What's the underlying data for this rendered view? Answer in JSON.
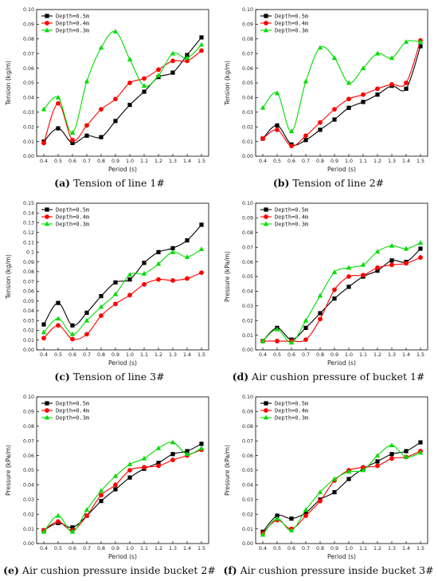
{
  "chart_data": [
    {
      "type": "line",
      "caption_letter": "(a)",
      "caption_text": "Tension of line 1#",
      "xlabel": "Period (s)",
      "ylabel": "Tension (kg/m)",
      "xlim": [
        0.35,
        1.55
      ],
      "ylim": [
        0,
        0.1
      ],
      "xticks": [
        "0.4",
        "0.5",
        "0.6",
        "0.7",
        "0.8",
        "0.9",
        "1.0",
        "1.1",
        "1.2",
        "1.3",
        "1.4",
        "1.5"
      ],
      "yticks": [
        "0.00",
        "0.01",
        "0.02",
        "0.03",
        "0.04",
        "0.05",
        "0.06",
        "0.07",
        "0.08",
        "0.09",
        "0.10"
      ],
      "legend_position": "top-left",
      "x": [
        0.4,
        0.5,
        0.6,
        0.7,
        0.8,
        0.9,
        1.0,
        1.1,
        1.2,
        1.3,
        1.4,
        1.5
      ],
      "series": [
        {
          "name": "Depth=0.5m",
          "color": "#000000",
          "marker": "square",
          "values": [
            0.01,
            0.019,
            0.009,
            0.014,
            0.013,
            0.024,
            0.035,
            0.044,
            0.054,
            0.057,
            0.069,
            0.081
          ]
        },
        {
          "name": "Depth=0.4m",
          "color": "#ff0000",
          "marker": "circle",
          "values": [
            0.009,
            0.036,
            0.011,
            0.021,
            0.032,
            0.039,
            0.05,
            0.053,
            0.059,
            0.065,
            0.065,
            0.072
          ]
        },
        {
          "name": "Depth=0.3m",
          "color": "#00dd00",
          "marker": "triangle",
          "values": [
            0.032,
            0.04,
            0.016,
            0.051,
            0.074,
            0.085,
            0.066,
            0.048,
            0.055,
            0.07,
            0.067,
            0.076
          ]
        }
      ]
    },
    {
      "type": "line",
      "caption_letter": "(b)",
      "caption_text": "Tension of line 2#",
      "xlabel": "Period (s)",
      "ylabel": "Tension (kg/m)",
      "xlim": [
        0.35,
        1.55
      ],
      "ylim": [
        0,
        0.1
      ],
      "xticks": [
        "0.4",
        "0.5",
        "0.6",
        "0.7",
        "0.8",
        "0.9",
        "1.0",
        "1.1",
        "1.2",
        "1.3",
        "1.4",
        "1.5"
      ],
      "yticks": [
        "0.00",
        "0.01",
        "0.02",
        "0.03",
        "0.04",
        "0.05",
        "0.06",
        "0.07",
        "0.08",
        "0.09",
        "0.10"
      ],
      "legend_position": "top-left",
      "x": [
        0.4,
        0.5,
        0.6,
        0.7,
        0.8,
        0.9,
        1.0,
        1.1,
        1.2,
        1.3,
        1.4,
        1.5
      ],
      "series": [
        {
          "name": "Depth=0.5m",
          "color": "#000000",
          "marker": "square",
          "values": [
            0.012,
            0.021,
            0.008,
            0.011,
            0.018,
            0.025,
            0.033,
            0.037,
            0.042,
            0.048,
            0.046,
            0.075
          ]
        },
        {
          "name": "Depth=0.4m",
          "color": "#ff0000",
          "marker": "circle",
          "values": [
            0.012,
            0.018,
            0.007,
            0.014,
            0.023,
            0.032,
            0.039,
            0.042,
            0.046,
            0.049,
            0.05,
            0.079
          ]
        },
        {
          "name": "Depth=0.3m",
          "color": "#00dd00",
          "marker": "triangle",
          "values": [
            0.033,
            0.043,
            0.017,
            0.051,
            0.074,
            0.067,
            0.05,
            0.06,
            0.07,
            0.067,
            0.078,
            0.078
          ]
        }
      ]
    },
    {
      "type": "line",
      "caption_letter": "(c)",
      "caption_text": "Tension of line 3#",
      "xlabel": "Period (s)",
      "ylabel": "Tension (kg/m)",
      "xlim": [
        0.35,
        1.55
      ],
      "ylim": [
        0,
        0.15
      ],
      "xticks": [
        "0.4",
        "0.5",
        "0.6",
        "0.7",
        "0.8",
        "0.9",
        "1.0",
        "1.1",
        "1.2",
        "1.3",
        "1.4",
        "1.5"
      ],
      "yticks": [
        "0.00",
        "0.01",
        "0.02",
        "0.03",
        "0.04",
        "0.05",
        "0.06",
        "0.07",
        "0.08",
        "0.09",
        "0.1",
        "0.11",
        "0.12",
        "0.13",
        "0.14",
        "0.15"
      ],
      "legend_position": "top-left",
      "x": [
        0.4,
        0.5,
        0.6,
        0.7,
        0.8,
        0.9,
        1.0,
        1.1,
        1.2,
        1.3,
        1.4,
        1.5
      ],
      "series": [
        {
          "name": "Depth=0.5m",
          "color": "#000000",
          "marker": "square",
          "values": [
            0.026,
            0.048,
            0.025,
            0.038,
            0.055,
            0.069,
            0.072,
            0.089,
            0.1,
            0.104,
            0.112,
            0.128
          ]
        },
        {
          "name": "Depth=0.4m",
          "color": "#ff0000",
          "marker": "circle",
          "values": [
            0.012,
            0.025,
            0.011,
            0.016,
            0.035,
            0.047,
            0.056,
            0.067,
            0.072,
            0.071,
            0.073,
            0.079
          ]
        },
        {
          "name": "Depth=0.3m",
          "color": "#00dd00",
          "marker": "triangle",
          "values": [
            0.018,
            0.032,
            0.016,
            0.03,
            0.044,
            0.057,
            0.077,
            0.078,
            0.088,
            0.1,
            0.095,
            0.103
          ]
        }
      ]
    },
    {
      "type": "line",
      "caption_letter": "(d)",
      "caption_text": "Air cushion pressure of bucket 1#",
      "xlabel": "Period (s)",
      "ylabel": "Pressure (kPa/m)",
      "xlim": [
        0.35,
        1.55
      ],
      "ylim": [
        0,
        0.1
      ],
      "xticks": [
        "0.4",
        "0.5",
        "0.6",
        "0.7",
        "0.8",
        "0.9",
        "1.0",
        "1.1",
        "1.2",
        "1.3",
        "1.4",
        "1.5"
      ],
      "yticks": [
        "0.00",
        "0.01",
        "0.02",
        "0.03",
        "0.04",
        "0.05",
        "0.06",
        "0.07",
        "0.08",
        "0.09",
        "0.10"
      ],
      "legend_position": "top-left",
      "x": [
        0.4,
        0.5,
        0.6,
        0.7,
        0.8,
        0.9,
        1.0,
        1.1,
        1.2,
        1.3,
        1.4,
        1.5
      ],
      "series": [
        {
          "name": "Depth=0.5m",
          "color": "#000000",
          "marker": "square",
          "values": [
            0.006,
            0.015,
            0.007,
            0.015,
            0.025,
            0.035,
            0.043,
            0.05,
            0.054,
            0.061,
            0.06,
            0.069
          ]
        },
        {
          "name": "Depth=0.4m",
          "color": "#ff0000",
          "marker": "circle",
          "values": [
            0.006,
            0.006,
            0.006,
            0.007,
            0.021,
            0.041,
            0.05,
            0.051,
            0.056,
            0.058,
            0.059,
            0.063
          ]
        },
        {
          "name": "Depth=0.3m",
          "color": "#00dd00",
          "marker": "triangle",
          "values": [
            0.006,
            0.014,
            0.005,
            0.02,
            0.037,
            0.053,
            0.056,
            0.058,
            0.067,
            0.071,
            0.069,
            0.073
          ]
        }
      ]
    },
    {
      "type": "line",
      "caption_letter": "(e)",
      "caption_text": "Air cushion pressure inside bucket 2#",
      "xlabel": "Period (s)",
      "ylabel": "Pressure (kPa/m)",
      "xlim": [
        0.35,
        1.55
      ],
      "ylim": [
        0,
        0.1
      ],
      "xticks": [
        "0.4",
        "0.5",
        "0.6",
        "0.7",
        "0.8",
        "0.9",
        "1.0",
        "1.1",
        "1.2",
        "1.3",
        "1.4",
        "1.5"
      ],
      "yticks": [
        "0.00",
        "0.01",
        "0.02",
        "0.03",
        "0.04",
        "0.05",
        "0.06",
        "0.07",
        "0.08",
        "0.09",
        "0.10"
      ],
      "legend_position": "top-left",
      "x": [
        0.4,
        0.5,
        0.6,
        0.7,
        0.8,
        0.9,
        1.0,
        1.1,
        1.2,
        1.3,
        1.4,
        1.5
      ],
      "series": [
        {
          "name": "Depth=0.5m",
          "color": "#000000",
          "marker": "square",
          "values": [
            0.009,
            0.014,
            0.011,
            0.019,
            0.029,
            0.037,
            0.045,
            0.051,
            0.055,
            0.061,
            0.063,
            0.068
          ]
        },
        {
          "name": "Depth=0.4m",
          "color": "#ff0000",
          "marker": "circle",
          "values": [
            0.009,
            0.015,
            0.009,
            0.019,
            0.033,
            0.04,
            0.05,
            0.052,
            0.053,
            0.057,
            0.06,
            0.064
          ]
        },
        {
          "name": "Depth=0.3m",
          "color": "#00dd00",
          "marker": "triangle",
          "values": [
            0.008,
            0.019,
            0.008,
            0.023,
            0.036,
            0.046,
            0.054,
            0.058,
            0.065,
            0.069,
            0.061,
            0.065
          ]
        }
      ]
    },
    {
      "type": "line",
      "caption_letter": "(f)",
      "caption_text": "Air cushion pressure inside bucket 3#",
      "xlabel": "Period (s)",
      "ylabel": "Pressure (kPa/m)",
      "xlim": [
        0.35,
        1.55
      ],
      "ylim": [
        0,
        0.1
      ],
      "xticks": [
        "0.4",
        "0.5",
        "0.6",
        "0.7",
        "0.8",
        "0.9",
        "1.0",
        "1.1",
        "1.2",
        "1.3",
        "1.4",
        "1.5"
      ],
      "yticks": [
        "0.00",
        "0.01",
        "0.02",
        "0.03",
        "0.04",
        "0.05",
        "0.06",
        "0.07",
        "0.08",
        "0.09",
        "0.10"
      ],
      "legend_position": "top-left",
      "x": [
        0.4,
        0.5,
        0.6,
        0.7,
        0.8,
        0.9,
        1.0,
        1.1,
        1.2,
        1.3,
        1.4,
        1.5
      ],
      "series": [
        {
          "name": "Depth=0.5m",
          "color": "#000000",
          "marker": "square",
          "values": [
            0.008,
            0.019,
            0.017,
            0.021,
            0.03,
            0.035,
            0.044,
            0.051,
            0.056,
            0.061,
            0.063,
            0.069
          ]
        },
        {
          "name": "Depth=0.4m",
          "color": "#ff0000",
          "marker": "circle",
          "values": [
            0.007,
            0.016,
            0.01,
            0.019,
            0.029,
            0.043,
            0.05,
            0.052,
            0.053,
            0.058,
            0.059,
            0.063
          ]
        },
        {
          "name": "Depth=0.3m",
          "color": "#00dd00",
          "marker": "triangle",
          "values": [
            0.006,
            0.017,
            0.009,
            0.023,
            0.035,
            0.044,
            0.049,
            0.05,
            0.06,
            0.067,
            0.059,
            0.062
          ]
        }
      ]
    }
  ]
}
